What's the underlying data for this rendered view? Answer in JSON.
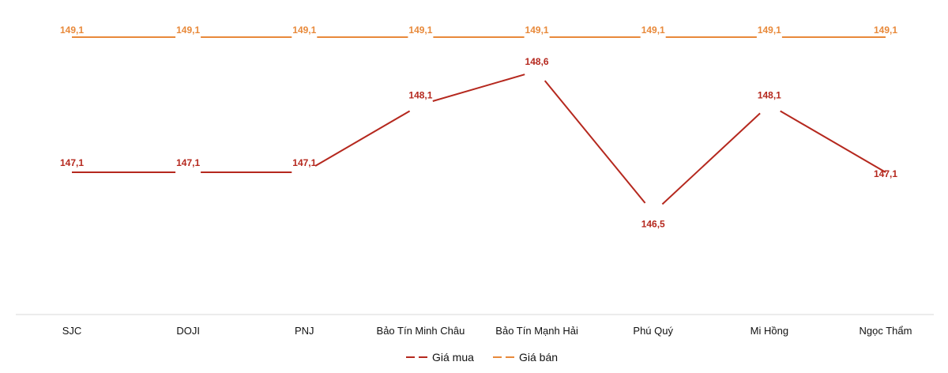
{
  "chart_data": {
    "type": "line",
    "categories": [
      "SJC",
      "DOJI",
      "PNJ",
      "Bảo Tín Minh Châu",
      "Bảo Tín Mạnh Hải",
      "Phú Quý",
      "Mi Hồng",
      "Ngọc Thẩm"
    ],
    "series": [
      {
        "name": "Giá mua",
        "color": "#b5281e",
        "values": [
          147.1,
          147.1,
          147.1,
          148.1,
          148.6,
          146.5,
          148.1,
          147.1
        ],
        "labels": [
          "147,1",
          "147,1",
          "147,1",
          "148,1",
          "148,6",
          "146,5",
          "148,1",
          "147,1"
        ]
      },
      {
        "name": "Giá bán",
        "color": "#e8893a",
        "values": [
          149.1,
          149.1,
          149.1,
          149.1,
          149.1,
          149.1,
          149.1,
          149.1
        ],
        "labels": [
          "149,1",
          "149,1",
          "149,1",
          "149,1",
          "149,1",
          "149,1",
          "149,1",
          "149,1"
        ]
      }
    ],
    "ylim": [
      145.0,
      149.5
    ],
    "grid": false,
    "legend_position": "bottom"
  }
}
